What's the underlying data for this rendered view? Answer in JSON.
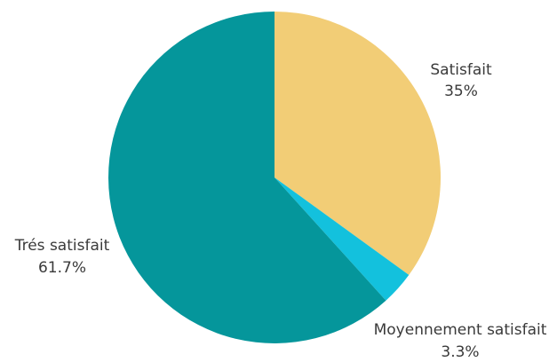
{
  "chart_data": {
    "type": "pie",
    "categories": [
      "Satisfait",
      "Moyennement satisfait",
      "Trés satisfait"
    ],
    "values": [
      35,
      3.3,
      61.7
    ],
    "value_labels": [
      "35%",
      "3.3%",
      "61.7%"
    ],
    "colors": [
      "#f2cd76",
      "#13c1dd",
      "#05969b"
    ],
    "start_angle_deg": 0,
    "direction": "clockwise"
  }
}
